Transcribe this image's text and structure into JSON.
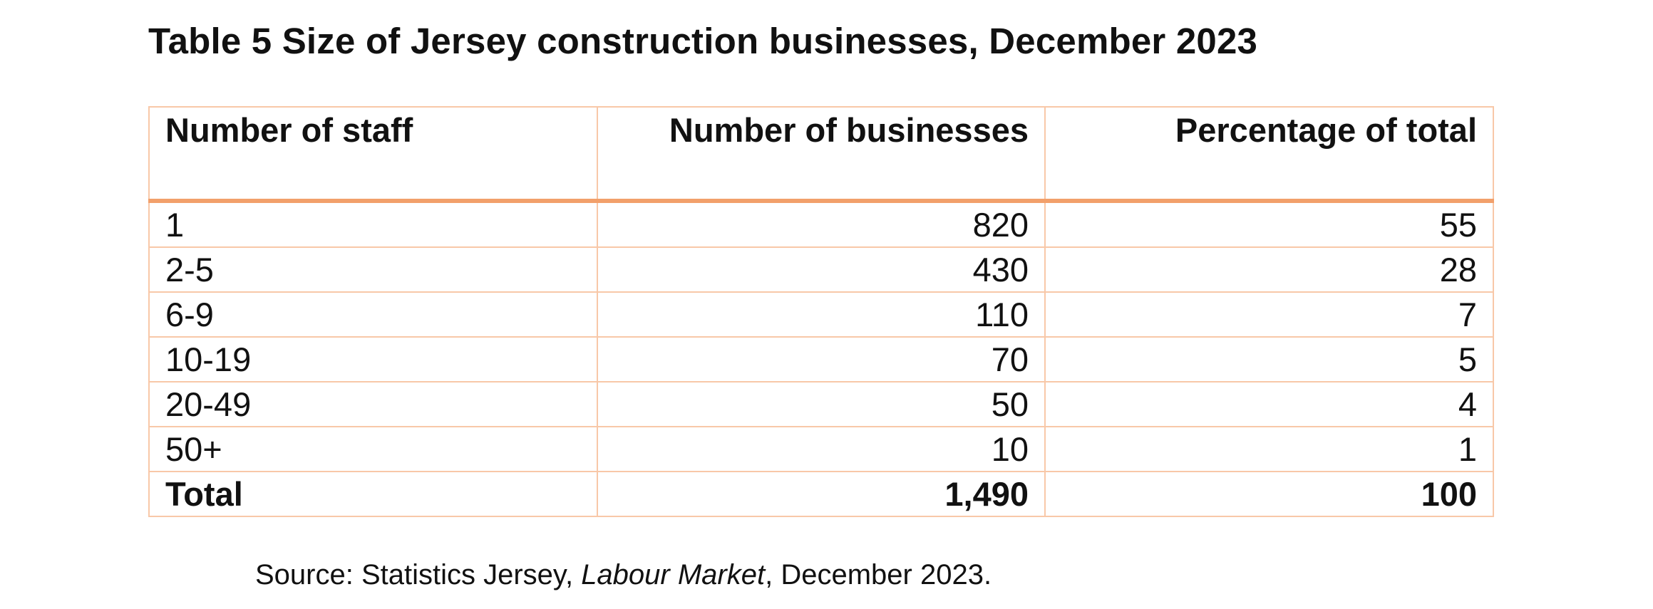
{
  "title": "Table 5 Size of Jersey construction businesses, December 2023",
  "table": {
    "headers": [
      "Number of staff",
      "Number of businesses",
      "Percentage of total"
    ],
    "rows": [
      [
        "1",
        "820",
        "55"
      ],
      [
        "2-5",
        "430",
        "28"
      ],
      [
        "6-9",
        "110",
        "7"
      ],
      [
        "10-19",
        "70",
        "5"
      ],
      [
        "20-49",
        "50",
        "4"
      ],
      [
        "50+",
        "10",
        "1"
      ]
    ],
    "total": [
      "Total",
      "1,490",
      "100"
    ]
  },
  "source": {
    "prefix": "Source: Statistics Jersey, ",
    "publication": "Labour Market",
    "suffix": ", December 2023."
  },
  "colors": {
    "border": "#f8c8a8",
    "header_rule": "#f2a06b"
  }
}
